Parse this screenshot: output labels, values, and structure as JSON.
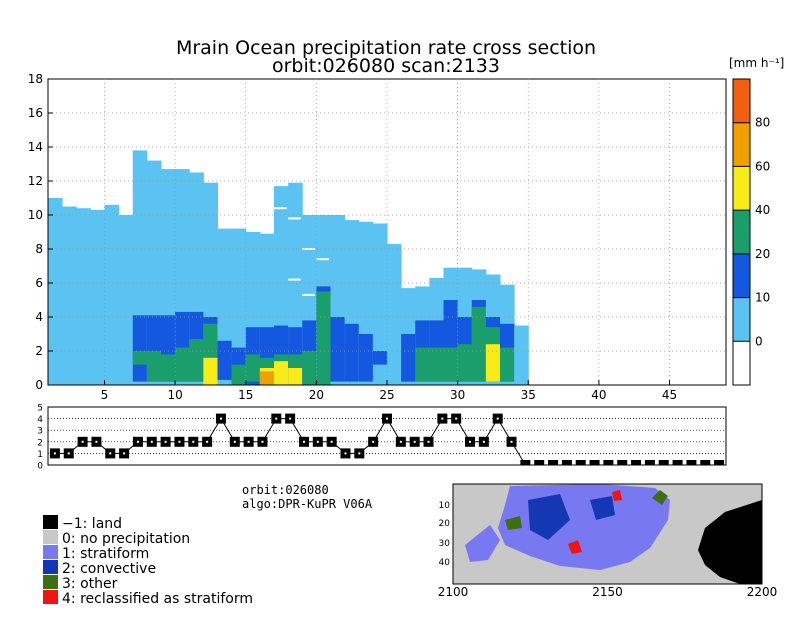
{
  "title_line1": "Mrain Ocean precipitation rate cross section",
  "title_line2": "orbit:026080    scan:2133",
  "unit_label": "[mm h⁻¹]",
  "info_orbit": "orbit:026080",
  "info_algo": "algo:DPR-KuPR V06A",
  "chart_data": [
    {
      "type": "heatmap",
      "name": "cross-section",
      "title": "Mrain Ocean precipitation rate cross section",
      "xlim": [
        1,
        49
      ],
      "ylim": [
        0,
        18
      ],
      "x_ticks": [
        "5",
        "10",
        "15",
        "20",
        "25",
        "30",
        "35",
        "40",
        "45"
      ],
      "y_ticks": [
        "0",
        "2",
        "4",
        "6",
        "8",
        "10",
        "12",
        "14",
        "16",
        "18"
      ],
      "x_tick_values": [
        5,
        10,
        15,
        20,
        25,
        30,
        35,
        40,
        45
      ],
      "y_tick_values": [
        0,
        2,
        4,
        6,
        8,
        10,
        12,
        14,
        16,
        18
      ],
      "colorbar": {
        "levels": [
          0,
          10,
          20,
          40,
          60,
          80,
          100
        ],
        "tick_labels": [
          "0",
          "10",
          "20",
          "40",
          "60",
          "80"
        ],
        "colors": [
          "#5bc3f2",
          "#1558e0",
          "#1a9e6c",
          "#f8ec18",
          "#f0a000",
          "#f06010"
        ],
        "below_color": "#ffffff"
      },
      "column_tops_km": [
        11.0,
        10.5,
        10.4,
        10.3,
        10.6,
        10.0,
        13.8,
        13.2,
        12.7,
        12.7,
        12.5,
        11.9,
        9.2,
        9.2,
        9.0,
        8.9,
        11.7,
        11.9,
        10.0,
        10.0,
        10.0,
        9.7,
        9.6,
        9.5,
        8.3,
        5.7,
        5.8,
        6.3,
        6.9,
        6.9,
        6.8,
        6.5,
        5.9,
        3.5
      ]
    },
    {
      "type": "line",
      "name": "precip-type-strip",
      "ylim": [
        0,
        5
      ],
      "y_ticks": [
        "0",
        "1",
        "2",
        "3",
        "4",
        "5"
      ],
      "x": [
        1,
        2,
        3,
        4,
        5,
        6,
        7,
        8,
        9,
        10,
        11,
        12,
        13,
        14,
        15,
        16,
        17,
        18,
        19,
        20,
        21,
        22,
        23,
        24,
        25,
        26,
        27,
        28,
        29,
        30,
        31,
        32,
        33,
        34,
        35,
        36,
        37,
        38,
        39,
        40,
        41,
        42,
        43,
        44,
        45,
        46,
        47,
        48,
        49
      ],
      "values": [
        1,
        1,
        2,
        2,
        1,
        1,
        2,
        2,
        2,
        2,
        2,
        2,
        4,
        2,
        2,
        2,
        4,
        4,
        2,
        2,
        2,
        1,
        1,
        2,
        4,
        2,
        2,
        2,
        4,
        4,
        2,
        2,
        4,
        2,
        0,
        0,
        0,
        0,
        0,
        0,
        0,
        0,
        0,
        0,
        0,
        0,
        0,
        0,
        0
      ]
    },
    {
      "type": "heatmap",
      "name": "scan-map",
      "x_ticks": [
        "2100",
        "2150",
        "2200"
      ],
      "y_ticks": [
        "10",
        "20",
        "30",
        "40"
      ]
    }
  ],
  "legend": [
    {
      "label": "−1: land",
      "color": "#000000"
    },
    {
      "label": "0: no precipitation",
      "color": "#c8c8c8"
    },
    {
      "label": "1: stratiform",
      "color": "#7878f0"
    },
    {
      "label": "2: convective",
      "color": "#1438b4"
    },
    {
      "label": "3: other",
      "color": "#3c6e14"
    },
    {
      "label": "4: reclassified as stratiform",
      "color": "#f01414"
    }
  ]
}
